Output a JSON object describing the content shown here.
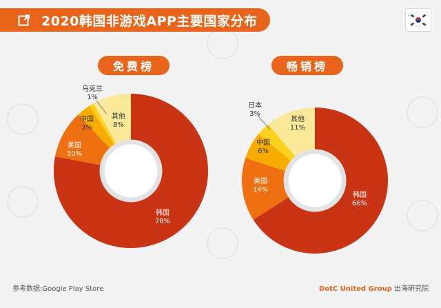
{
  "header": {
    "title": "2020韩国非游戏APP主要国家分布"
  },
  "flag": {
    "name": "south-korea-flag"
  },
  "chart_data": [
    {
      "type": "pie",
      "title": "免费榜",
      "categories": [
        "韩国",
        "美国",
        "中国",
        "乌克兰",
        "其他"
      ],
      "values": [
        78,
        10,
        3,
        1,
        8
      ],
      "labels": [
        "78%",
        "10%",
        "3%",
        "1%",
        "8%"
      ]
    },
    {
      "type": "pie",
      "title": "畅销榜",
      "categories": [
        "韩国",
        "美国",
        "中国",
        "日本",
        "其他"
      ],
      "values": [
        66,
        14,
        6,
        3,
        11
      ],
      "labels": [
        "66%",
        "14%",
        "6%",
        "3%",
        "11%"
      ]
    }
  ],
  "colors": [
    "#c93414",
    "#ef7010",
    "#f6ac00",
    "#fdd21e",
    "#fbe99a"
  ],
  "footer": {
    "source": "参考数据:Google Play Store",
    "brand": "DotC United Group",
    "org": "出海研究院"
  }
}
